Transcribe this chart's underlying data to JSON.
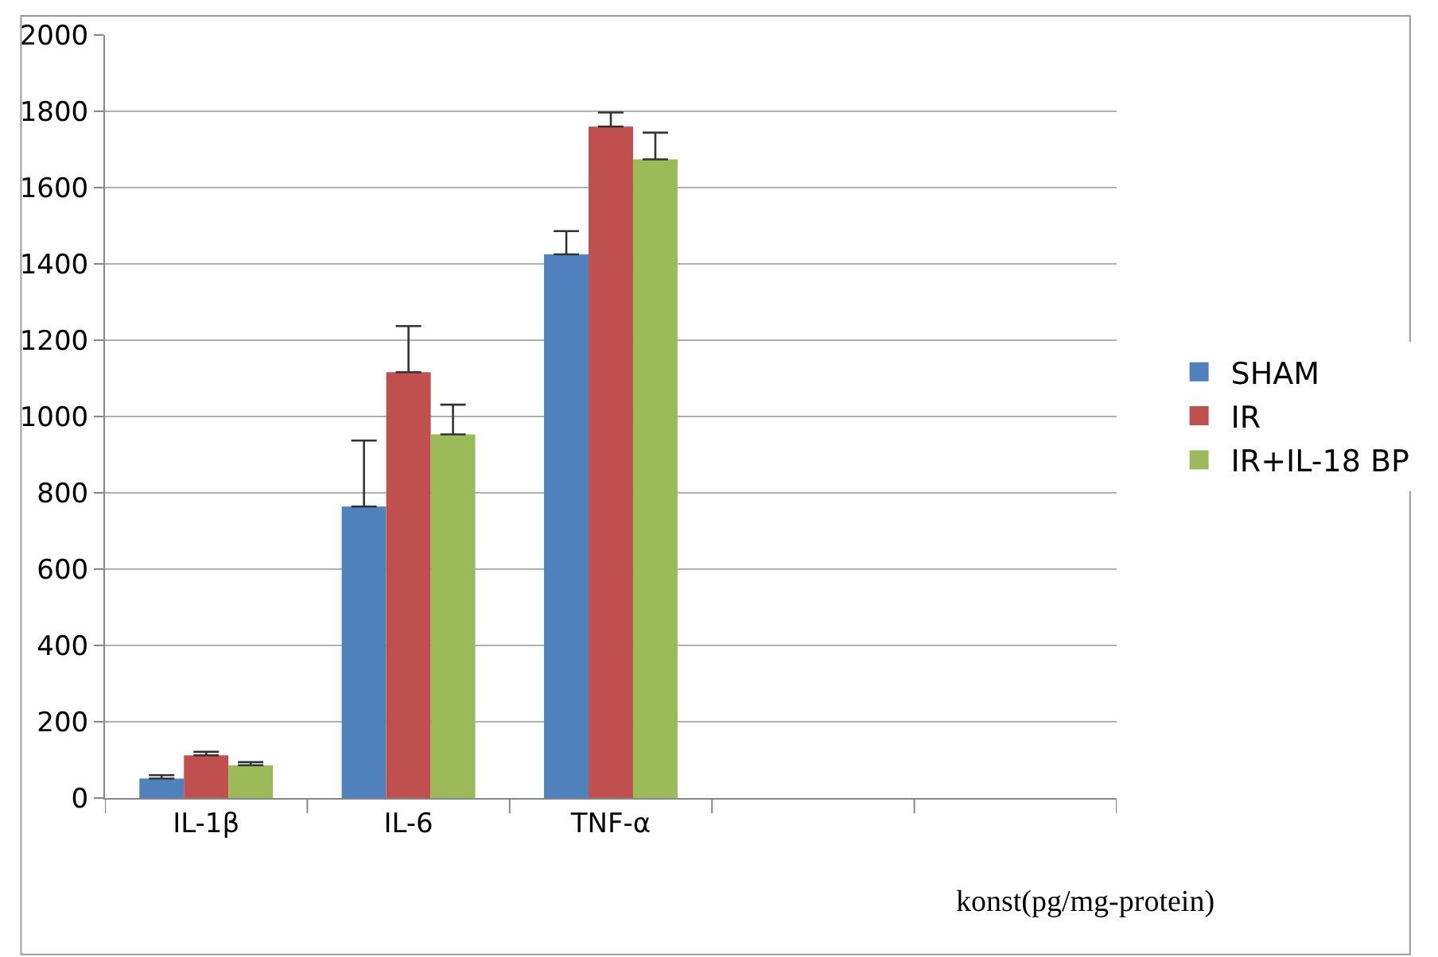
{
  "chart_data": {
    "type": "bar",
    "xlabel": "konst(pg/mg-protein)",
    "categories": [
      "IL-1β",
      "IL-6",
      "TNF-α",
      null,
      null
    ],
    "series": [
      {
        "name": "SHAM",
        "color": "#4f81bd",
        "values": [
          51,
          764,
          1425,
          null,
          null
        ],
        "errors": [
          [
            51,
            60
          ],
          [
            764,
            937
          ],
          [
            1425,
            1486
          ],
          null,
          null
        ]
      },
      {
        "name": "IR",
        "color": "#c0504d",
        "values": [
          112,
          1116,
          1760,
          null,
          null
        ],
        "errors": [
          [
            112,
            121
          ],
          [
            1116,
            1237
          ],
          [
            1760,
            1797
          ],
          null,
          null
        ]
      },
      {
        "name": "IR+IL-18 BP",
        "color": "#9bbb59",
        "values": [
          86,
          953,
          1674,
          null,
          null
        ],
        "errors": [
          [
            86,
            94
          ],
          [
            953,
            1031
          ],
          [
            1674,
            1744
          ],
          null,
          null
        ]
      }
    ],
    "ylim": [
      0,
      2000
    ],
    "yticks": [
      0,
      200,
      400,
      600,
      800,
      1000,
      1200,
      1400,
      1600,
      1800,
      2000
    ],
    "grid": "y",
    "legend": "right"
  }
}
